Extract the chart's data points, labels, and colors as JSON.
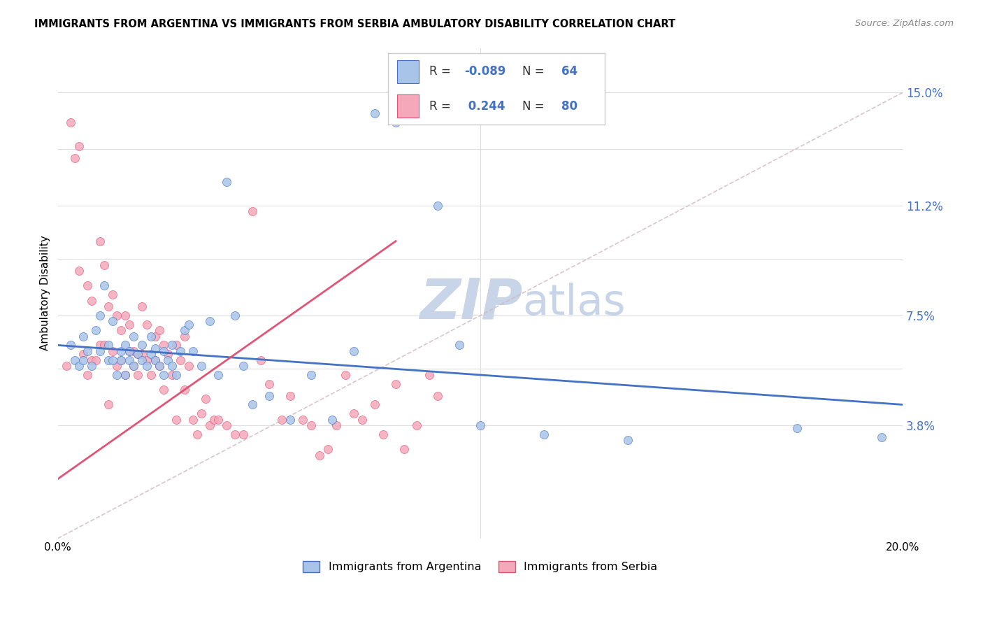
{
  "title": "IMMIGRANTS FROM ARGENTINA VS IMMIGRANTS FROM SERBIA AMBULATORY DISABILITY CORRELATION CHART",
  "source": "Source: ZipAtlas.com",
  "ylabel": "Ambulatory Disability",
  "xlim": [
    0.0,
    0.2
  ],
  "ylim": [
    0.0,
    0.165
  ],
  "ytick_values": [
    0.0,
    0.038,
    0.057,
    0.075,
    0.094,
    0.112,
    0.131,
    0.15
  ],
  "ytick_labels": [
    "",
    "3.8%",
    "",
    "7.5%",
    "",
    "11.2%",
    "",
    "15.0%"
  ],
  "xtick_values": [
    0.0,
    0.02,
    0.04,
    0.06,
    0.08,
    0.1,
    0.12,
    0.14,
    0.16,
    0.18,
    0.2
  ],
  "xtick_labels": [
    "0.0%",
    "",
    "",
    "",
    "",
    "",
    "",
    "",
    "",
    "",
    "20.0%"
  ],
  "argentina_color": "#a8c4e8",
  "serbia_color": "#f4a8ba",
  "argentina_edge_color": "#4472c4",
  "serbia_edge_color": "#e05575",
  "argentina_line_color": "#4472c4",
  "serbia_line_color": "#e05575",
  "dashed_line_color": "#d0b8c0",
  "watermark_color": "#c8d4e8",
  "argentina_R": "-0.089",
  "argentina_N": 64,
  "serbia_R": "0.244",
  "serbia_N": 80,
  "argentina_scatter_x": [
    0.003,
    0.004,
    0.005,
    0.006,
    0.006,
    0.007,
    0.008,
    0.009,
    0.01,
    0.01,
    0.011,
    0.012,
    0.012,
    0.013,
    0.013,
    0.014,
    0.015,
    0.015,
    0.016,
    0.016,
    0.017,
    0.017,
    0.018,
    0.018,
    0.019,
    0.02,
    0.02,
    0.021,
    0.022,
    0.022,
    0.023,
    0.023,
    0.024,
    0.025,
    0.025,
    0.026,
    0.027,
    0.027,
    0.028,
    0.029,
    0.03,
    0.031,
    0.032,
    0.034,
    0.036,
    0.038,
    0.04,
    0.042,
    0.044,
    0.046,
    0.05,
    0.055,
    0.06,
    0.065,
    0.07,
    0.075,
    0.08,
    0.09,
    0.095,
    0.1,
    0.115,
    0.135,
    0.175,
    0.195
  ],
  "argentina_scatter_y": [
    0.065,
    0.06,
    0.058,
    0.06,
    0.068,
    0.063,
    0.058,
    0.07,
    0.075,
    0.063,
    0.085,
    0.06,
    0.065,
    0.06,
    0.073,
    0.055,
    0.06,
    0.063,
    0.055,
    0.065,
    0.06,
    0.063,
    0.058,
    0.068,
    0.062,
    0.06,
    0.065,
    0.058,
    0.062,
    0.068,
    0.06,
    0.064,
    0.058,
    0.055,
    0.063,
    0.06,
    0.058,
    0.065,
    0.055,
    0.063,
    0.07,
    0.072,
    0.063,
    0.058,
    0.073,
    0.055,
    0.12,
    0.075,
    0.058,
    0.045,
    0.048,
    0.04,
    0.055,
    0.04,
    0.063,
    0.143,
    0.14,
    0.112,
    0.065,
    0.038,
    0.035,
    0.033,
    0.037,
    0.034
  ],
  "serbia_scatter_x": [
    0.002,
    0.003,
    0.004,
    0.005,
    0.005,
    0.006,
    0.007,
    0.007,
    0.008,
    0.008,
    0.009,
    0.01,
    0.01,
    0.011,
    0.011,
    0.012,
    0.012,
    0.013,
    0.013,
    0.014,
    0.014,
    0.015,
    0.015,
    0.016,
    0.016,
    0.017,
    0.017,
    0.018,
    0.018,
    0.019,
    0.019,
    0.02,
    0.02,
    0.021,
    0.021,
    0.022,
    0.023,
    0.023,
    0.024,
    0.024,
    0.025,
    0.025,
    0.026,
    0.027,
    0.028,
    0.028,
    0.029,
    0.03,
    0.03,
    0.031,
    0.032,
    0.033,
    0.034,
    0.035,
    0.036,
    0.037,
    0.038,
    0.04,
    0.042,
    0.044,
    0.046,
    0.048,
    0.05,
    0.053,
    0.055,
    0.058,
    0.06,
    0.062,
    0.064,
    0.066,
    0.068,
    0.07,
    0.072,
    0.075,
    0.077,
    0.08,
    0.082,
    0.085,
    0.088,
    0.09
  ],
  "serbia_scatter_y": [
    0.058,
    0.14,
    0.128,
    0.132,
    0.09,
    0.062,
    0.055,
    0.085,
    0.06,
    0.08,
    0.06,
    0.065,
    0.1,
    0.065,
    0.092,
    0.045,
    0.078,
    0.063,
    0.082,
    0.058,
    0.075,
    0.06,
    0.07,
    0.055,
    0.075,
    0.063,
    0.072,
    0.058,
    0.063,
    0.062,
    0.055,
    0.062,
    0.078,
    0.06,
    0.072,
    0.055,
    0.06,
    0.068,
    0.058,
    0.07,
    0.05,
    0.065,
    0.062,
    0.055,
    0.04,
    0.065,
    0.06,
    0.05,
    0.068,
    0.058,
    0.04,
    0.035,
    0.042,
    0.047,
    0.038,
    0.04,
    0.04,
    0.038,
    0.035,
    0.035,
    0.11,
    0.06,
    0.052,
    0.04,
    0.048,
    0.04,
    0.038,
    0.028,
    0.03,
    0.038,
    0.055,
    0.042,
    0.04,
    0.045,
    0.035,
    0.052,
    0.03,
    0.038,
    0.055,
    0.048
  ],
  "serbia_line_x": [
    0.0,
    0.08
  ],
  "argentina_line_x_start": 0.0,
  "argentina_line_x_end": 0.2,
  "argentina_line_y_start": 0.065,
  "argentina_line_y_end": 0.045,
  "serbia_line_y_start": 0.02,
  "serbia_line_y_end": 0.1
}
